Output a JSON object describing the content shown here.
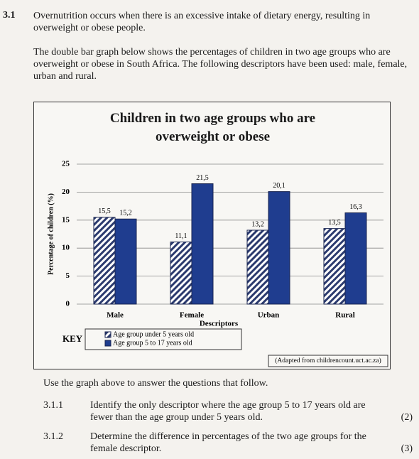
{
  "question": {
    "number": "3.1",
    "paragraphs": [
      "Overnutrition occurs when there is an excessive intake of dietary energy, resulting in overweight or obese people.",
      "The double bar graph below shows the percentages of children in two age groups who are overweight or obese in South Africa. The following descriptors have been used: male, female, urban and rural."
    ]
  },
  "chart_data": {
    "type": "bar",
    "title": "Children in two age groups who are overweight or obese",
    "x_label": "Descriptors",
    "y_label": "Percentage of children (%)",
    "categories": [
      "Male",
      "Female",
      "Urban",
      "Rural"
    ],
    "series": [
      {
        "name": "Age group under 5 years old",
        "color": "#2b3a6e",
        "hatch": true,
        "values": [
          15.5,
          11.1,
          13.2,
          13.5
        ],
        "value_labels": [
          "15,5",
          "11,1",
          "13,2",
          "13,5"
        ]
      },
      {
        "name": "Age group 5 to 17 years old",
        "color": "#1f3d8f",
        "hatch": false,
        "values": [
          15.2,
          21.5,
          20.1,
          16.3
        ],
        "value_labels": [
          "15,2",
          "21,5",
          "20,1",
          "16,3"
        ]
      }
    ],
    "ylim": [
      0,
      25
    ],
    "yticks": [
      0,
      5,
      10,
      15,
      20,
      25
    ],
    "grid": true,
    "key_label": "KEY",
    "source": "(Adapted from childrencount.uct.ac.za)"
  },
  "instruction": "Use the graph above to answer the questions that follow.",
  "subquestions": [
    {
      "number": "3.1.1",
      "text": "Identify the only descriptor where the age group 5 to 17 years old are fewer than the age group under 5 years old.",
      "marks": "(2)"
    },
    {
      "number": "3.1.2",
      "text": "Determine the difference in percentages of the two age groups for the female descriptor.",
      "marks": "(3)"
    }
  ]
}
